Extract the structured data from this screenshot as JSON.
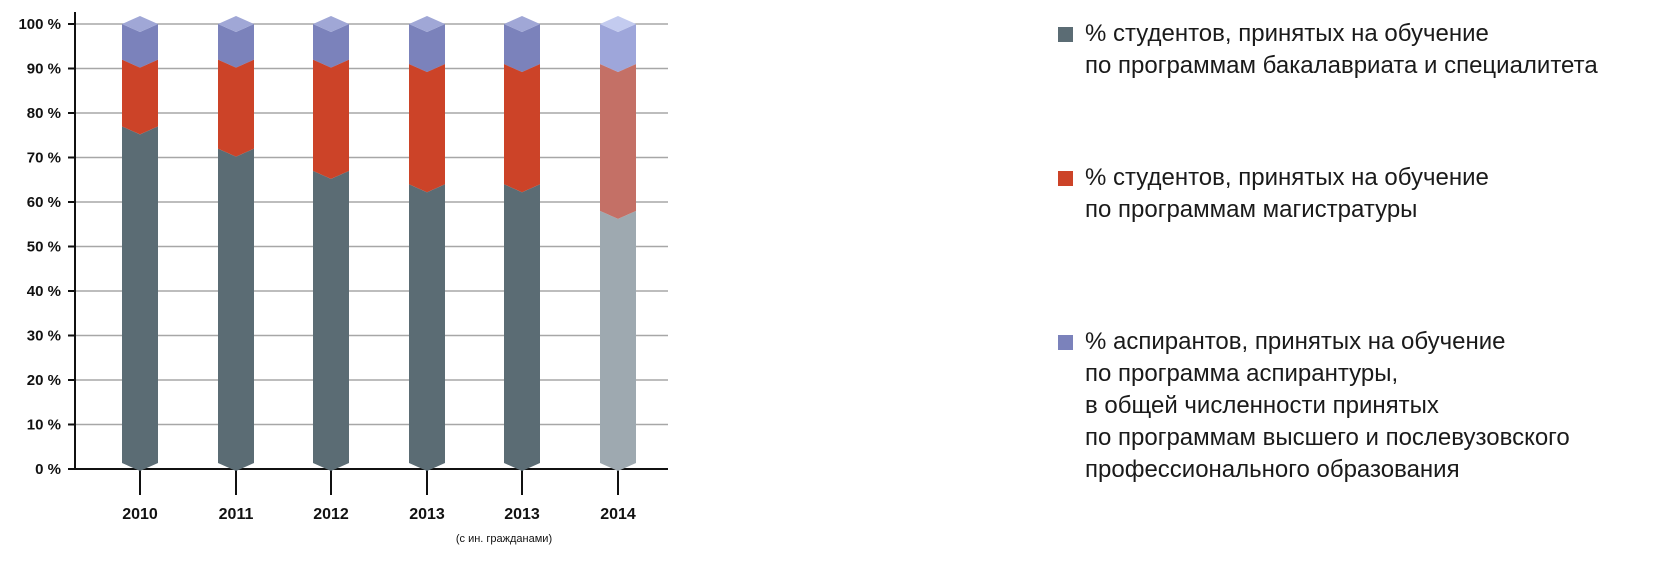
{
  "chart_data": {
    "type": "bar",
    "stacked": true,
    "categories": [
      "2010",
      "2011",
      "2012",
      "2013",
      "2013",
      "2014"
    ],
    "category_sublabels": [
      "",
      "",
      "",
      "",
      "(с ин. гражданами)",
      ""
    ],
    "y_ticks": [
      "0 %",
      "10 %",
      "20 %",
      "30 %",
      "40 %",
      "50 %",
      "60 %",
      "70 %",
      "80 %",
      "90 %",
      "100 %"
    ],
    "ylim": [
      0,
      100
    ],
    "grid": true,
    "legend_position": "right",
    "series": [
      {
        "name": "% студентов, принятых на обучение\nпо программам бакалавриата и специалитета",
        "values": [
          77,
          72,
          67,
          64,
          64,
          58
        ],
        "color": "#5b6c74",
        "color_light": "#9ea9b0"
      },
      {
        "name": "% студентов, принятых на обучение\nпо программам магистратуры",
        "values": [
          15,
          20,
          25,
          27,
          27,
          33
        ],
        "color": "#cc4328",
        "color_light": "#c47066"
      },
      {
        "name": "% аспирантов, принятых на обучение\nпо программа аспирантуры,\nв общей численности принятых\nпо программам высшего и послевузовского\nпрофессионального образования",
        "values": [
          8,
          8,
          8,
          9,
          9,
          9
        ],
        "color": "#7b82bb",
        "color_light": "#9ea6da"
      }
    ],
    "lighter_categories": [
      5
    ]
  }
}
